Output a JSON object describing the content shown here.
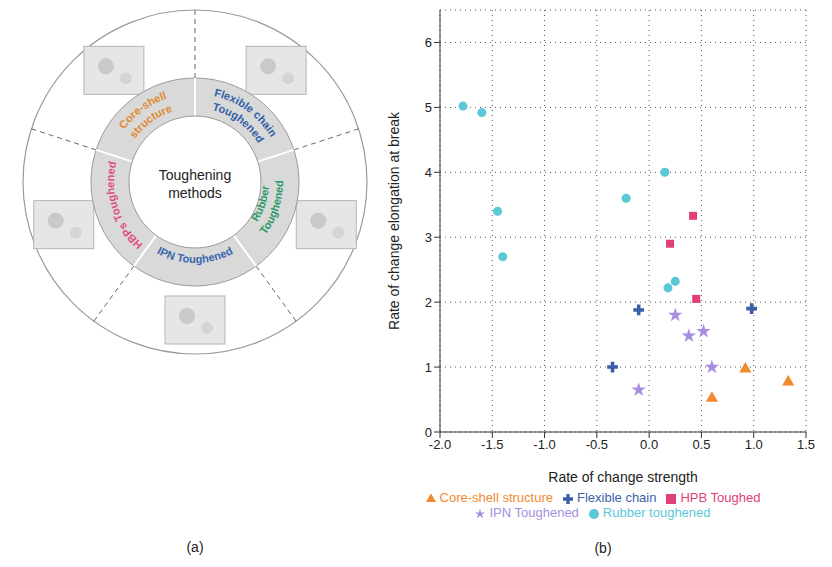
{
  "diagram": {
    "panel_label": "(a)",
    "center": "Toughening methods",
    "segments": [
      {
        "label": "Flexible chain Toughened",
        "color": "#2f5fa7"
      },
      {
        "label": "Rubber Toughened",
        "color": "#2e9a6a"
      },
      {
        "label": "IPN Toughened",
        "color": "#3a66b0"
      },
      {
        "label": "HBPs Toughened",
        "color": "#e0507a"
      },
      {
        "label": "Core-shell structure",
        "color": "#e08a2e"
      }
    ]
  },
  "chart_data": {
    "type": "scatter",
    "panel_label": "(b)",
    "x_label": "Rate of change strength",
    "y_label": "Rate of change elongation at break",
    "xlim": [
      -2,
      1.5
    ],
    "xticks": [
      {
        "value": -2,
        "label": "-2.0"
      },
      -1.5,
      {
        "value": -1,
        "label": "-1.0"
      },
      -0.5,
      {
        "value": 0,
        "label": "0.0"
      },
      0.5,
      {
        "value": 1,
        "label": "1.0"
      },
      1.5
    ],
    "ylim": [
      0,
      6.5
    ],
    "yticks": [
      0,
      1,
      2,
      3,
      4,
      5,
      6
    ],
    "grid": true,
    "legend": "bottom",
    "series": [
      {
        "name": "Flexible chain",
        "color": "#3a5fa8",
        "marker": "cross",
        "x": [
          -0.35,
          -0.1,
          0.98
        ],
        "values": [
          1.0,
          1.88,
          1.9
        ]
      },
      {
        "name": "Rubber toughened",
        "color": "#5bc8d8",
        "marker": "circle",
        "x": [
          -1.78,
          -1.6,
          -1.45,
          -1.4,
          -0.22,
          0.15,
          0.18,
          0.25
        ],
        "values": [
          5.02,
          4.92,
          3.4,
          2.7,
          3.6,
          4.0,
          2.22,
          2.32
        ]
      },
      {
        "name": "IPN Toughened",
        "color": "#a98ee0",
        "marker": "star",
        "x": [
          -0.1,
          0.25,
          0.38,
          0.52,
          0.6
        ],
        "values": [
          0.65,
          1.8,
          1.48,
          1.55,
          1.0
        ]
      },
      {
        "name": "HPB Toughed",
        "color": "#e0407a",
        "marker": "square",
        "x": [
          0.2,
          0.42,
          0.45
        ],
        "values": [
          2.9,
          3.33,
          2.05
        ]
      },
      {
        "name": "Core-shell structure",
        "color": "#f28a2e",
        "marker": "triangle",
        "x": [
          0.6,
          0.92,
          1.33
        ],
        "values": [
          0.52,
          0.97,
          0.77
        ]
      }
    ]
  }
}
